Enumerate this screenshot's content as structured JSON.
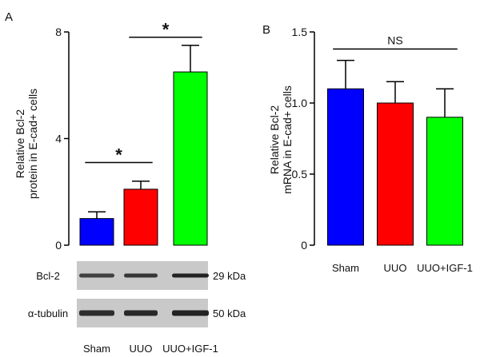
{
  "chart_data": [
    {
      "panel": "A",
      "type": "bar",
      "ylabel_line1": "Relative Bcl-2",
      "ylabel_line2": "protein in E-cad+ cells",
      "ylim": [
        0,
        8
      ],
      "yticks": [
        "0",
        "4",
        "8"
      ],
      "categories": [
        "Sham",
        "UUO",
        "UUO+IGF-1"
      ],
      "values": [
        1.0,
        2.1,
        6.5
      ],
      "errors": [
        0.25,
        0.3,
        1.0
      ],
      "colors": [
        "#0000ff",
        "#ff0000",
        "#00ff00"
      ],
      "annotations": [
        {
          "text": "*",
          "from": 0,
          "to": 1,
          "y": 3.1
        },
        {
          "text": "*",
          "from": 1,
          "to": 2,
          "y": 7.8
        }
      ],
      "blot": {
        "rows": [
          {
            "label": "Bcl-2",
            "size": "29 kDa"
          },
          {
            "label": "α-tubulin",
            "size": "50 kDa"
          }
        ]
      }
    },
    {
      "panel": "B",
      "type": "bar",
      "ylabel_line1": "Relative Bcl-2",
      "ylabel_line2": "mRNA in E-cad+ cells",
      "ylim": [
        0,
        1.5
      ],
      "yticks": [
        "0",
        "0.5",
        "1.0",
        "1.5"
      ],
      "categories": [
        "Sham",
        "UUO",
        "UUO+IGF-1"
      ],
      "values": [
        1.1,
        1.0,
        0.9
      ],
      "errors": [
        0.2,
        0.15,
        0.2
      ],
      "colors": [
        "#0000ff",
        "#ff0000",
        "#00ff00"
      ],
      "annotations": [
        {
          "text": "NS",
          "from": 0,
          "to": 2,
          "y": 1.38
        }
      ]
    }
  ]
}
